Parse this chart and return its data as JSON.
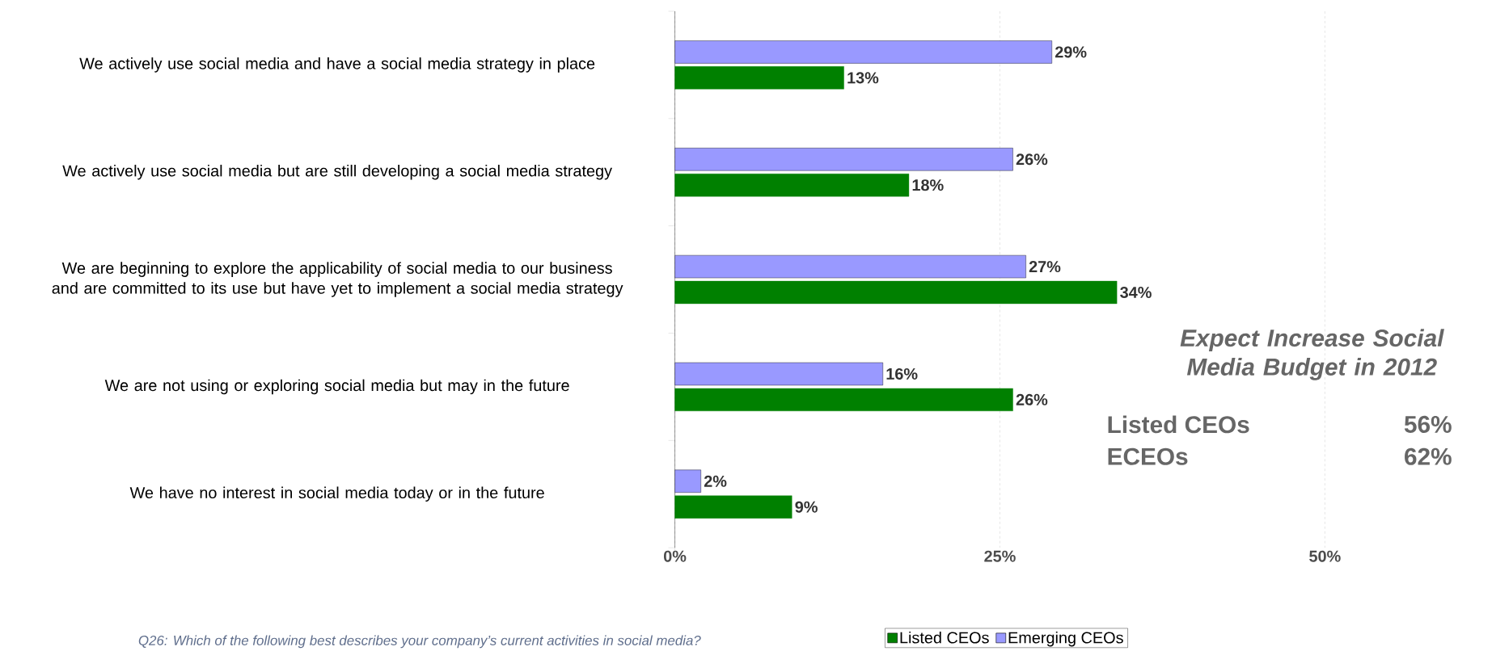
{
  "chart_data": {
    "type": "bar",
    "orientation": "horizontal",
    "categories": [
      "We actively use social media and have a social media strategy in place",
      "We actively use social media but are still developing a social media strategy",
      "We are beginning to explore the applicability of social media to our business and are committed to its use but have yet to implement a social media strategy",
      "We are not using or exploring social media but may in the future",
      "We have no interest in social media today or in the future"
    ],
    "series": [
      {
        "name": "Listed CEOs",
        "color": "#008000",
        "values": [
          13,
          18,
          34,
          26,
          9
        ],
        "value_labels": [
          "13%",
          "18%",
          "34%",
          "26%",
          "9%"
        ]
      },
      {
        "name": "Emerging CEOs",
        "color": "#9999ff",
        "values": [
          29,
          26,
          27,
          16,
          2
        ],
        "value_labels": [
          "29%",
          "26%",
          "27%",
          "16%",
          "2%"
        ]
      }
    ],
    "xlim": [
      0,
      50
    ],
    "xticks": [
      {
        "value": 0,
        "label": "0%"
      },
      {
        "value": 25,
        "label": "25%"
      },
      {
        "value": 50,
        "label": "50%"
      }
    ],
    "grid": "x",
    "legend": "bottom",
    "annotations": [
      "Expect Increase Social Media Budget in 2012",
      "Listed CEOs",
      "56%",
      "ECEOs",
      "62%",
      "Q26: Which of the following best describes your company’s current activities in social media?"
    ]
  }
}
